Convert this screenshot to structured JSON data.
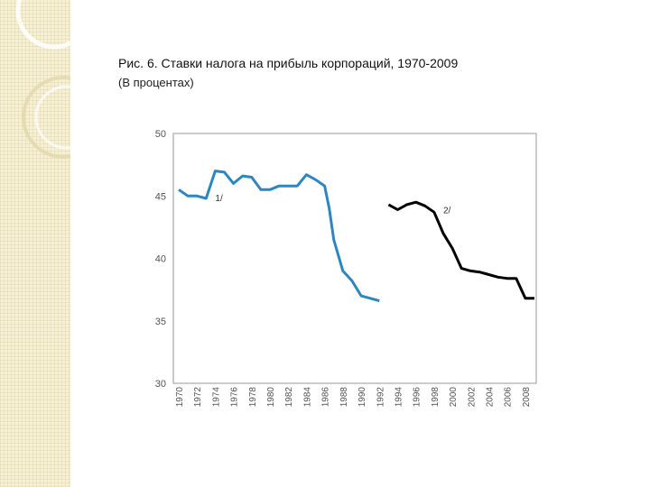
{
  "slide": {
    "title": "Рис. 6. Ставки налога на прибыль корпораций, 1970-2009",
    "subtitle": "(В процентах)"
  },
  "colors": {
    "series1": "#2e86c1",
    "series2": "#000000",
    "strip_background": "#f6f0d6",
    "axis": "#999999"
  },
  "chart_data": {
    "type": "line",
    "ylim": [
      30,
      50
    ],
    "yticks": [
      30,
      35,
      40,
      45,
      50
    ],
    "xlim": [
      1970,
      2009
    ],
    "xticks": [
      "1970",
      "1972",
      "1974",
      "1976",
      "1978",
      "1980",
      "1982",
      "1984",
      "1986",
      "1988",
      "1990",
      "1992",
      "1994",
      "1996",
      "1998",
      "2000",
      "2002",
      "2004",
      "2006",
      "2008"
    ],
    "grid": false,
    "series": [
      {
        "name": "1/",
        "x": [
          1970,
          1971,
          1972,
          1973,
          1974,
          1975,
          1976,
          1977,
          1978,
          1979,
          1980,
          1981,
          1982,
          1983,
          1984,
          1985,
          1986,
          1986.5,
          1987,
          1988,
          1989,
          1990,
          1991,
          1992
        ],
        "y": [
          45.5,
          45.0,
          45.0,
          44.8,
          47.0,
          46.9,
          46.0,
          46.6,
          46.5,
          45.5,
          45.5,
          45.8,
          45.8,
          45.8,
          46.7,
          46.3,
          45.8,
          44.0,
          41.5,
          39.0,
          38.2,
          37.0,
          36.8,
          36.6
        ]
      },
      {
        "name": "2/",
        "x": [
          1993,
          1994,
          1995,
          1996,
          1997,
          1998,
          1999,
          2000,
          2001,
          2002,
          2003,
          2004,
          2005,
          2006,
          2007,
          2008,
          2009
        ],
        "y": [
          44.3,
          43.9,
          44.3,
          44.5,
          44.2,
          43.7,
          42.0,
          40.8,
          39.2,
          39.0,
          38.9,
          38.7,
          38.5,
          38.4,
          38.4,
          36.8,
          36.8
        ]
      }
    ]
  }
}
